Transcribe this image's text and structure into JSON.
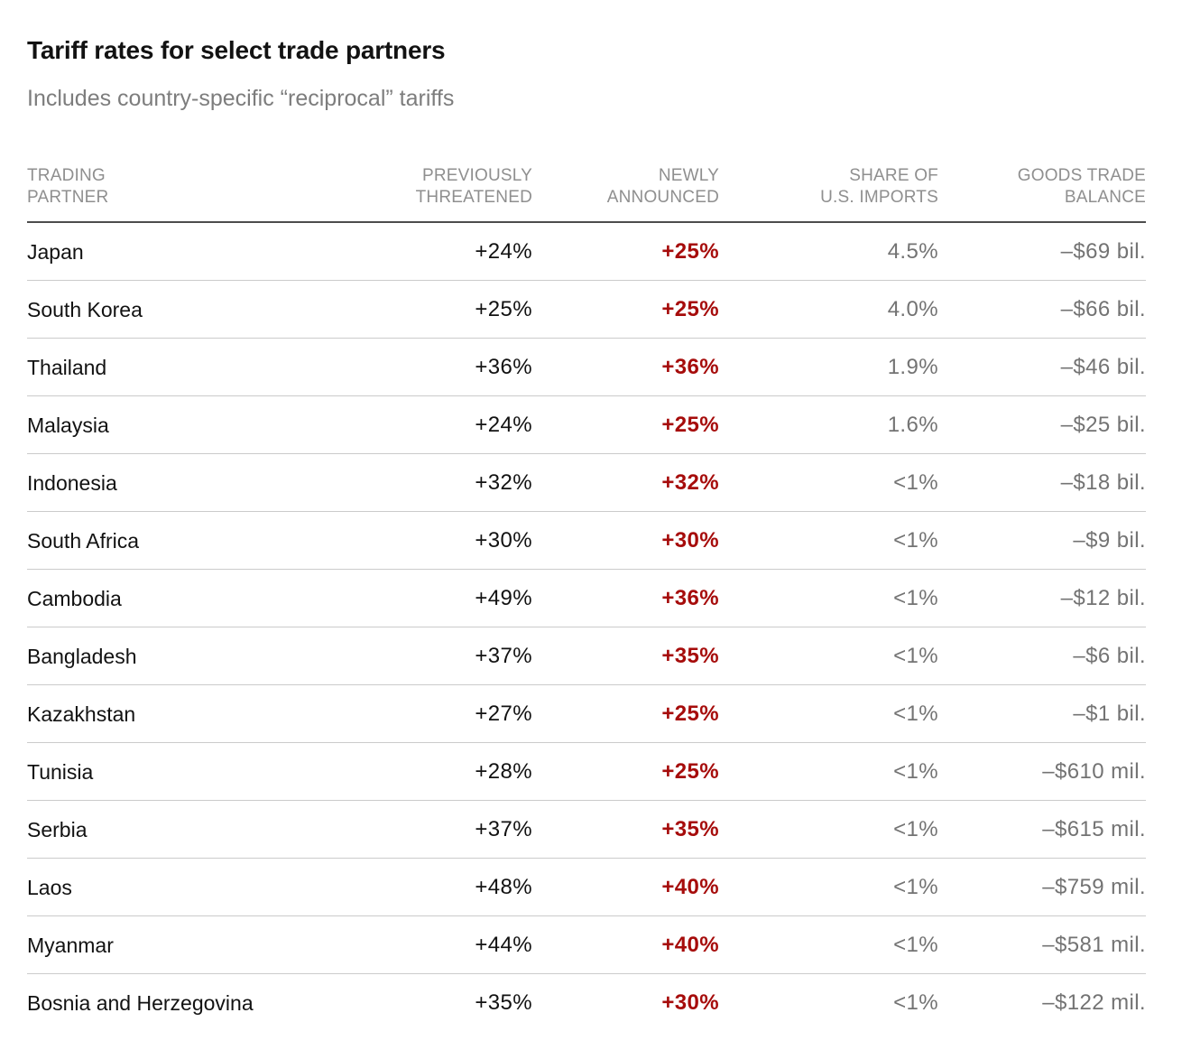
{
  "title": "Tariff rates for select trade partners",
  "subtitle": "Includes country-specific “reciprocal” tariffs",
  "colors": {
    "accent_red": "#a60c0b",
    "text_primary": "#121212",
    "text_muted": "#737373",
    "header_gray": "#8f8f8f",
    "subtitle_gray": "#7d7d7d",
    "header_rule": "#4d4d4d",
    "row_divider": "#cbcbcb"
  },
  "chart_data": {
    "type": "table",
    "title": "Tariff rates for select trade partners",
    "subtitle": "Includes country-specific “reciprocal” tariffs",
    "columns": [
      {
        "label": "TRADING\nPARTNER",
        "align": "left"
      },
      {
        "label": "PREVIOUSLY\nTHREATENED",
        "align": "right"
      },
      {
        "label": "NEWLY\nANNOUNCED",
        "align": "right"
      },
      {
        "label": "SHARE OF\nU.S. IMPORTS",
        "align": "right"
      },
      {
        "label": "GOODS TRADE\nBALANCE",
        "align": "right"
      }
    ],
    "rows": [
      [
        "Japan",
        "+24%",
        "+25%",
        "4.5%",
        "–$69 bil."
      ],
      [
        "South Korea",
        "+25%",
        "+25%",
        "4.0%",
        "–$66 bil."
      ],
      [
        "Thailand",
        "+36%",
        "+36%",
        "1.9%",
        "–$46 bil."
      ],
      [
        "Malaysia",
        "+24%",
        "+25%",
        "1.6%",
        "–$25 bil."
      ],
      [
        "Indonesia",
        "+32%",
        "+32%",
        "<1%",
        "–$18 bil."
      ],
      [
        "South Africa",
        "+30%",
        "+30%",
        "<1%",
        "–$9 bil."
      ],
      [
        "Cambodia",
        "+49%",
        "+36%",
        "<1%",
        "–$12 bil."
      ],
      [
        "Bangladesh",
        "+37%",
        "+35%",
        "<1%",
        "–$6 bil."
      ],
      [
        "Kazakhstan",
        "+27%",
        "+25%",
        "<1%",
        "–$1 bil."
      ],
      [
        "Tunisia",
        "+28%",
        "+25%",
        "<1%",
        "–$610 mil."
      ],
      [
        "Serbia",
        "+37%",
        "+35%",
        "<1%",
        "–$615 mil."
      ],
      [
        "Laos",
        "+48%",
        "+40%",
        "<1%",
        "–$759 mil."
      ],
      [
        "Myanmar",
        "+44%",
        "+40%",
        "<1%",
        "–$581 mil."
      ],
      [
        "Bosnia and Herzegovina",
        "+35%",
        "+30%",
        "<1%",
        "–$122 mil."
      ]
    ],
    "highlight_column": "NEWLY ANNOUNCED",
    "highlight_color": "#a60c0b",
    "grid": "horizontal-dividers",
    "legend": "none"
  }
}
